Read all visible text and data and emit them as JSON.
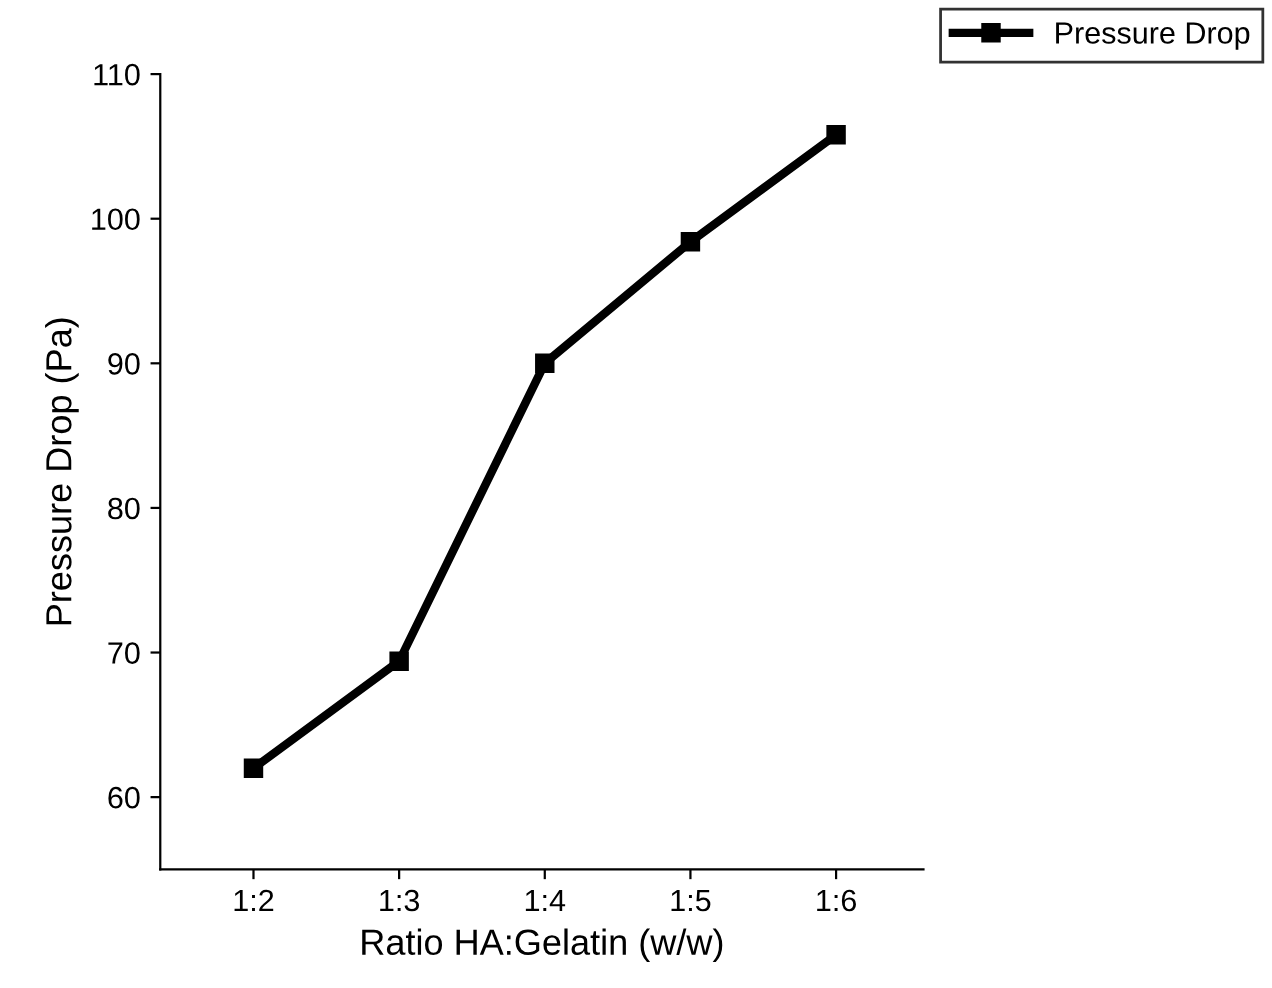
{
  "chart_data": {
    "type": "line",
    "xlabel": "Ratio HA:Gelatin (w/w)",
    "ylabel": "Pressure Drop (Pa)",
    "categories": [
      "1:2",
      "1:3",
      "1:4",
      "1:5",
      "1:6"
    ],
    "series": [
      {
        "name": "Pressure Drop",
        "color": "#000000",
        "values": [
          62,
          69.4,
          90,
          98.4,
          105.8
        ]
      }
    ],
    "ylim": [
      55,
      110
    ],
    "yticks": [
      60,
      70,
      80,
      90,
      100,
      110
    ],
    "marker": "square",
    "line_style": "solid",
    "legend": "top right",
    "grid": false
  }
}
